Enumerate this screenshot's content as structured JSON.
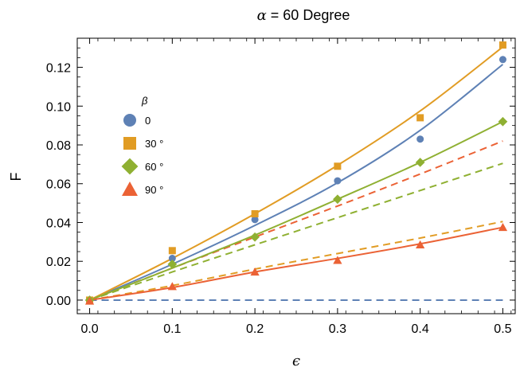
{
  "chart_data": {
    "type": "scatter",
    "title_var": "α",
    "title_rest": " = 60 Degree",
    "xlabel": "ϵ",
    "ylabel": "F",
    "xlim": [
      -0.015,
      0.515
    ],
    "ylim": [
      -0.007,
      0.135
    ],
    "x_ticks": [
      0.0,
      0.1,
      0.2,
      0.3,
      0.4,
      0.5
    ],
    "x_tick_labels": [
      "0.0",
      "0.1",
      "0.2",
      "0.3",
      "0.4",
      "0.5"
    ],
    "y_ticks": [
      0.0,
      0.02,
      0.04,
      0.06,
      0.08,
      0.1,
      0.12
    ],
    "y_tick_labels": [
      "0.00",
      "0.02",
      "0.04",
      "0.06",
      "0.08",
      "0.10",
      "0.12"
    ],
    "grid": false,
    "legend": {
      "title": "β",
      "placement": "upper-left",
      "entries": [
        "0",
        "30 °",
        "60 °",
        "90 °"
      ]
    },
    "x": [
      0.0,
      0.1,
      0.2,
      0.3,
      0.4,
      0.5
    ],
    "series": [
      {
        "name": "0",
        "marker": "circle",
        "color": "#5E81B5",
        "points": [
          0.0,
          0.0215,
          0.0415,
          0.0615,
          0.083,
          0.124
        ],
        "fit_solid": [
          0.0,
          0.0185,
          0.0385,
          0.0605,
          0.0875,
          0.1215
        ],
        "fit_dashed": [
          0.0,
          0.0,
          0.0,
          0.0,
          0.0,
          0.0
        ]
      },
      {
        "name": "30 °",
        "marker": "square",
        "color": "#E19C24",
        "points": [
          0.0,
          0.0255,
          0.0445,
          0.069,
          0.094,
          0.1315
        ],
        "fit_solid": [
          0.0,
          0.0215,
          0.0445,
          0.0695,
          0.0975,
          0.1305
        ],
        "fit_dashed": [
          0.0,
          0.0075,
          0.016,
          0.024,
          0.032,
          0.0405
        ]
      },
      {
        "name": "60 °",
        "marker": "diamond",
        "color": "#8FB032",
        "points": [
          0.0,
          0.0185,
          0.0325,
          0.052,
          0.071,
          0.092
        ],
        "fit_solid": [
          0.0,
          0.0165,
          0.0335,
          0.052,
          0.071,
          0.092
        ],
        "fit_dashed": [
          0.0,
          0.0145,
          0.0285,
          0.0425,
          0.0565,
          0.0705
        ]
      },
      {
        "name": "90 °",
        "marker": "triangle",
        "color": "#EB6235",
        "points": [
          -0.0005,
          0.007,
          0.0145,
          0.0205,
          0.0285,
          0.0375
        ],
        "fit_solid": [
          0.0,
          0.0065,
          0.0145,
          0.0215,
          0.029,
          0.0375
        ],
        "fit_dashed": [
          0.0,
          0.0165,
          0.0325,
          0.0485,
          0.065,
          0.082
        ]
      }
    ]
  }
}
